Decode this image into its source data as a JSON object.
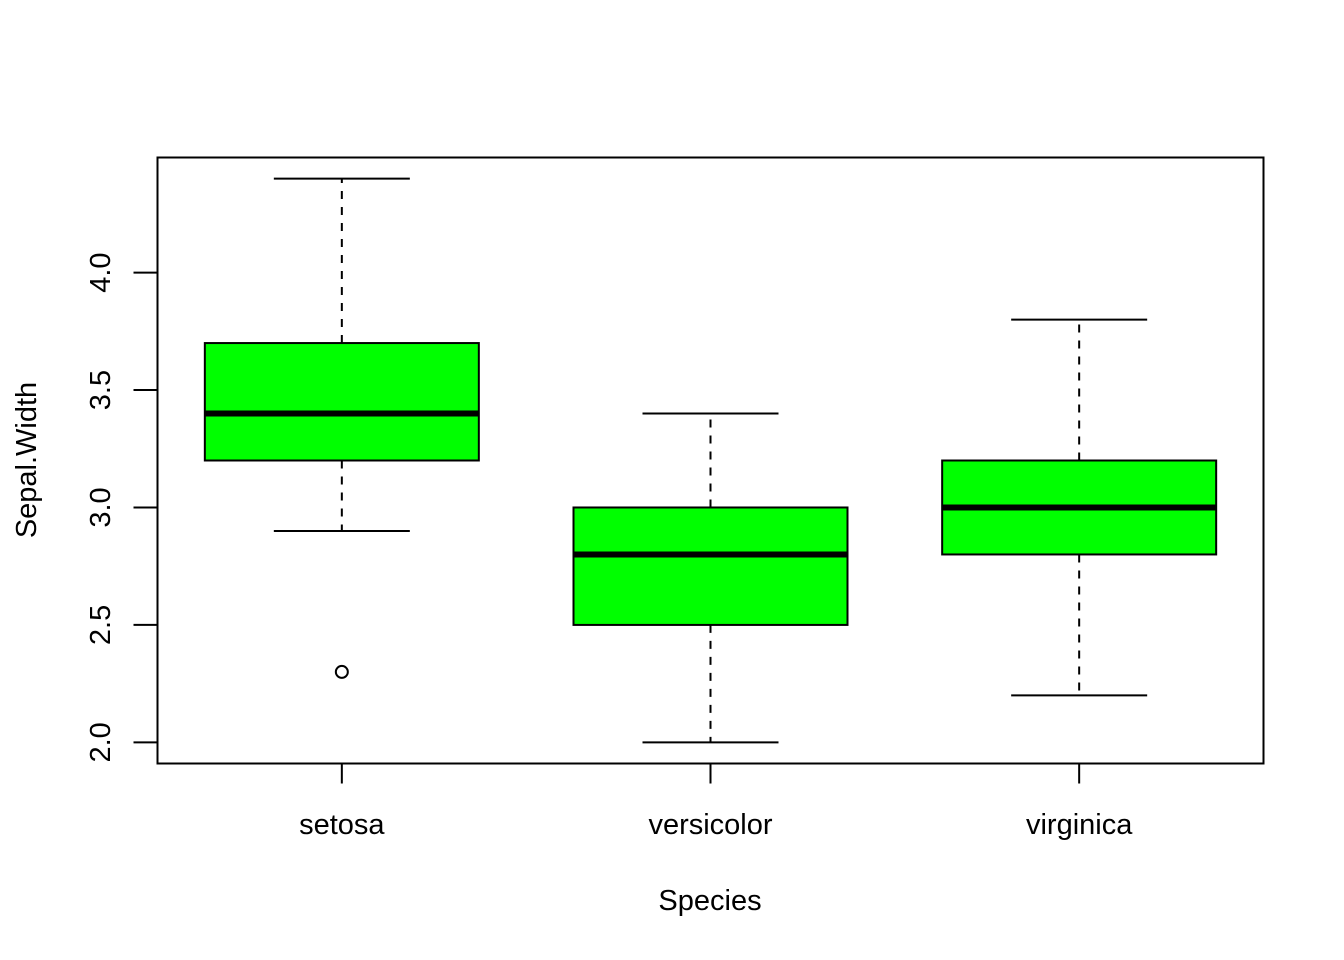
{
  "chart_data": {
    "type": "boxplot",
    "title": "",
    "xlabel": "Species",
    "ylabel": "Sepal.Width",
    "categories": [
      "setosa",
      "versicolor",
      "virginica"
    ],
    "boxes": [
      {
        "category": "setosa",
        "whisker_low": 2.9,
        "q1": 3.2,
        "median": 3.4,
        "q3": 3.7,
        "whisker_high": 4.4,
        "outliers": [
          2.3
        ]
      },
      {
        "category": "versicolor",
        "whisker_low": 2.0,
        "q1": 2.5,
        "median": 2.8,
        "q3": 3.0,
        "whisker_high": 3.4,
        "outliers": []
      },
      {
        "category": "virginica",
        "whisker_low": 2.2,
        "q1": 2.8,
        "median": 3.0,
        "q3": 3.2,
        "whisker_high": 3.8,
        "outliers": []
      }
    ],
    "ylim": [
      1.91,
      4.49
    ],
    "yticks": [
      2.0,
      2.5,
      3.0,
      3.5,
      4.0
    ],
    "ytick_labels": [
      "2.0",
      "2.5",
      "3.0",
      "3.5",
      "4.0"
    ],
    "grid": false,
    "legend": "none",
    "box_color": "#00ff00",
    "line_color": "#000000",
    "background_color": "#ffffff"
  }
}
